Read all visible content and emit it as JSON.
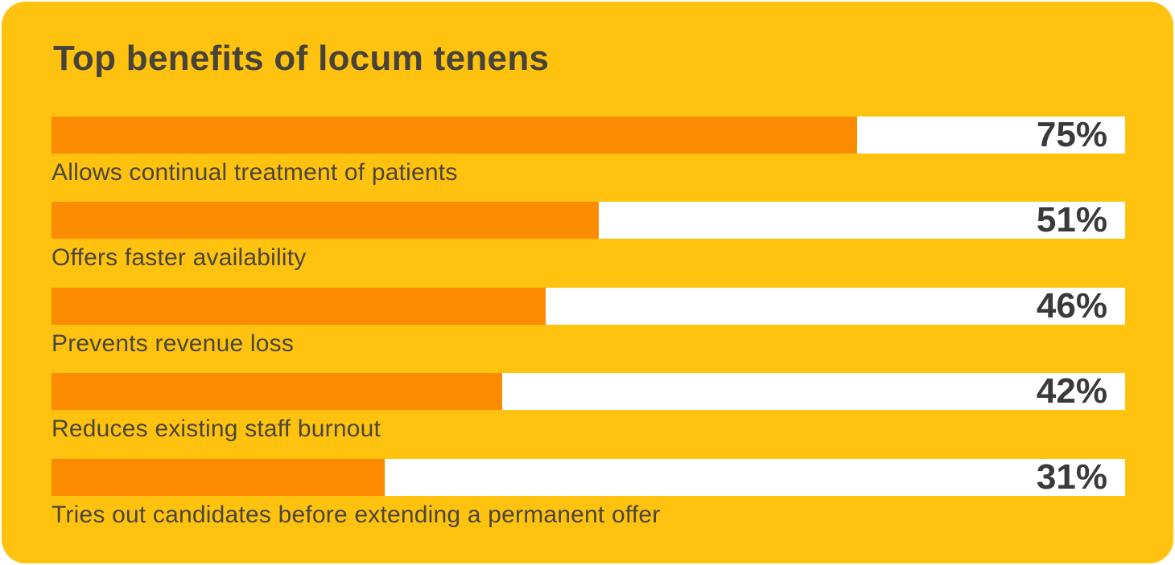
{
  "chart_data": {
    "type": "bar",
    "orientation": "horizontal",
    "title": "Top benefits of locum tenens",
    "categories": [
      "Allows continual treatment of patients",
      "Offers faster availability",
      "Prevents revenue loss",
      "Reduces existing staff burnout",
      "Tries out candidates before extending a permanent offer"
    ],
    "values": [
      75,
      51,
      46,
      42,
      31
    ],
    "value_labels": [
      "75%",
      "51%",
      "46%",
      "42%",
      "31%"
    ],
    "xlim": [
      0,
      100
    ],
    "unit": "%",
    "legend": "none",
    "grid": false,
    "colors": {
      "card_background": "#FFC20E",
      "bar_fill": "#FB8B00",
      "bar_track": "#FFFFFF",
      "title_text": "#474339",
      "label_text": "#4A4639",
      "value_text": "#3A3A3A"
    }
  }
}
